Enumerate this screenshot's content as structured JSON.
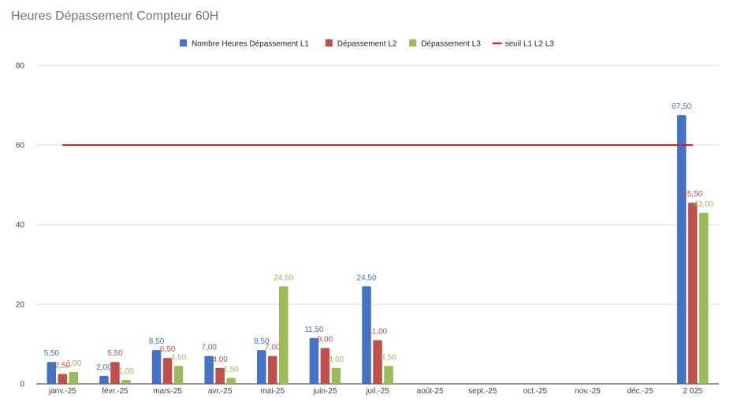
{
  "chart_data": {
    "type": "bar",
    "title": "Heures Dépassement Compteur 60H",
    "xlabel": "",
    "ylabel": "",
    "ylim": [
      0,
      80
    ],
    "yticks": [
      0,
      20,
      40,
      60,
      80
    ],
    "grid": true,
    "legend_position": "top-center",
    "categories": [
      "janv.-25",
      "févr.-25",
      "mars-25",
      "avr.-25",
      "mai-25",
      "juin-25",
      "juil.-25",
      "août-25",
      "sept.-25",
      "oct.-25",
      "nov.-25",
      "déc.-25",
      "2 025"
    ],
    "series": [
      {
        "name": "Nombre Heures Dépassement L1",
        "color": "#4472C4",
        "values": [
          5.5,
          2.0,
          8.5,
          7.0,
          8.5,
          11.5,
          24.5,
          null,
          null,
          null,
          null,
          null,
          67.5
        ],
        "labels": [
          "5,50",
          "2,00",
          "8,50",
          "7,00",
          "8,50",
          "11,50",
          "24,50",
          "",
          "",
          "",
          "",
          "",
          "67,50"
        ]
      },
      {
        "name": "Dépassement L2",
        "color": "#C0504D",
        "values": [
          2.5,
          5.5,
          6.5,
          4.0,
          7.0,
          9.0,
          11.0,
          null,
          null,
          null,
          null,
          null,
          45.5
        ],
        "labels": [
          "2,50",
          "5,50",
          "6,50",
          "4,00",
          "7,00",
          "9,00",
          "11,00",
          "",
          "",
          "",
          "",
          "",
          "45,50"
        ]
      },
      {
        "name": "Dépassement L3",
        "color": "#9BBB59",
        "values": [
          3.0,
          1.0,
          4.5,
          1.5,
          24.5,
          4.0,
          4.5,
          null,
          null,
          null,
          null,
          null,
          43.0
        ],
        "labels": [
          "3,00",
          "1,00",
          "4,50",
          "1,50",
          "24,50",
          "4,00",
          "4,50",
          "",
          "",
          "",
          "",
          "",
          "43,00"
        ]
      }
    ],
    "threshold": {
      "name": "seuil L1 L2 L3",
      "color": "#E02020",
      "value": 60
    }
  }
}
